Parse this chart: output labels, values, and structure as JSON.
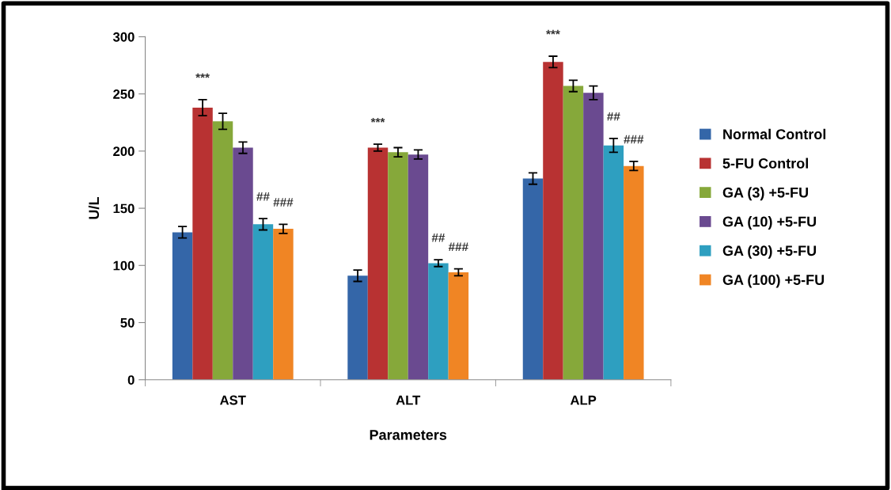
{
  "chart_data": {
    "type": "bar",
    "xlabel": "Parameters",
    "ylabel": "U/L",
    "categories": [
      "AST",
      "ALT",
      "ALP"
    ],
    "series": [
      {
        "name": "Normal Control",
        "color": "#3466a8",
        "values": [
          129,
          91,
          176
        ],
        "errors": [
          5,
          5,
          5
        ]
      },
      {
        "name": "5-FU Control",
        "color": "#b83232",
        "values": [
          238,
          203,
          278
        ],
        "errors": [
          7,
          3,
          5
        ],
        "value_labels": [
          "***",
          "***",
          "***"
        ]
      },
      {
        "name": "GA (3) +5-FU",
        "color": "#86a83a",
        "values": [
          226,
          199,
          257
        ],
        "errors": [
          7,
          4,
          5
        ]
      },
      {
        "name": "GA (10) +5-FU",
        "color": "#6a4a90",
        "values": [
          203,
          197,
          251
        ],
        "errors": [
          5,
          4,
          6
        ]
      },
      {
        "name": "GA (30) +5-FU",
        "color": "#2e9fc0",
        "values": [
          136,
          102,
          205
        ],
        "errors": [
          5,
          3,
          6
        ],
        "value_labels": [
          "##",
          "##",
          "##"
        ]
      },
      {
        "name": "GA (100) +5-FU",
        "color": "#f08524",
        "values": [
          132,
          94,
          187
        ],
        "errors": [
          4,
          3,
          4
        ],
        "value_labels": [
          "###",
          "###",
          "###"
        ]
      }
    ],
    "ylim": [
      0,
      300
    ],
    "yticks": [
      0,
      50,
      100,
      150,
      200,
      250,
      300
    ],
    "grid": false,
    "legend": "right"
  }
}
